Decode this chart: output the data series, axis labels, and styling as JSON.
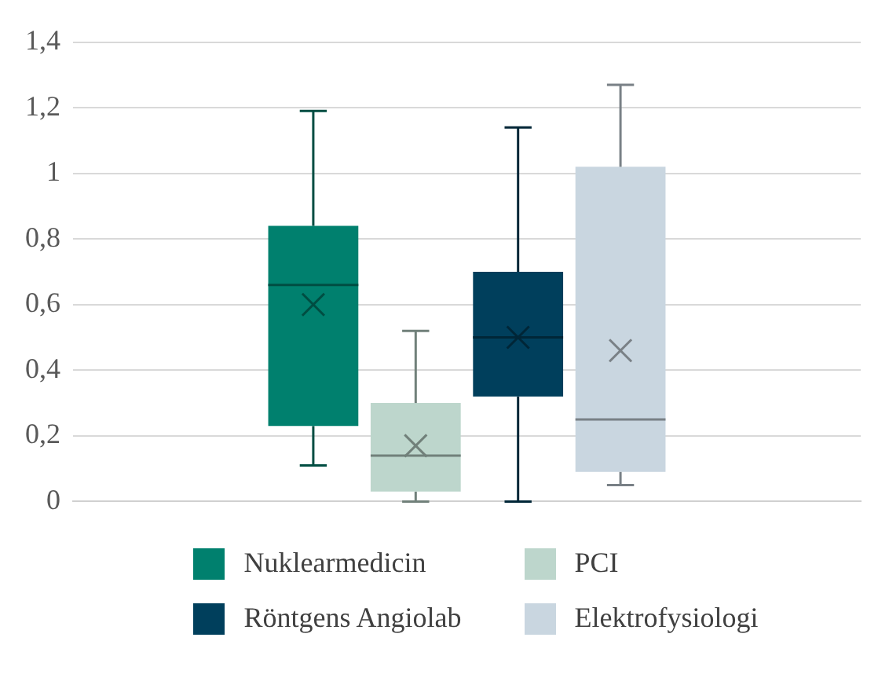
{
  "chart_data": {
    "type": "box",
    "categories": [
      null
    ],
    "series": [
      {
        "name": "Nuklearmedicin",
        "color": "#00806e",
        "boxes": [
          {
            "low": 0.11,
            "q1": 0.23,
            "median": 0.66,
            "q3": 0.84,
            "high": 1.19,
            "mean": 0.6
          }
        ]
      },
      {
        "name": "PCI",
        "color": "#bdd6cc",
        "boxes": [
          {
            "low": 0,
            "q1": 0.03,
            "median": 0.14,
            "q3": 0.3,
            "high": 0.52,
            "mean": 0.17
          }
        ]
      },
      {
        "name": "Röntgens Angiolab",
        "color": "#003f5c",
        "boxes": [
          {
            "low": 0,
            "q1": 0.32,
            "median": 0.5,
            "q3": 0.7,
            "high": 1.14,
            "mean": 0.5
          }
        ]
      },
      {
        "name": "Elektrofysiologi",
        "color": "#c9d6e0",
        "boxes": [
          {
            "low": 0.05,
            "q1": 0.09,
            "median": 0.25,
            "q3": 1.02,
            "high": 1.27,
            "mean": 0.46
          }
        ]
      }
    ],
    "ylim": [
      0,
      1.4
    ],
    "yticks": [
      0,
      {
        "value": 0.2,
        "label": "0,2"
      },
      {
        "value": 0.4,
        "label": "0,4"
      },
      {
        "value": 0.6,
        "label": "0,6"
      },
      {
        "value": 0.8,
        "label": "0,8"
      },
      1,
      {
        "value": 1.2,
        "label": "1,2"
      },
      {
        "value": 1.4,
        "label": "1,4"
      }
    ],
    "grid": "y",
    "legend": "bottom",
    "tick_labels": "y"
  }
}
